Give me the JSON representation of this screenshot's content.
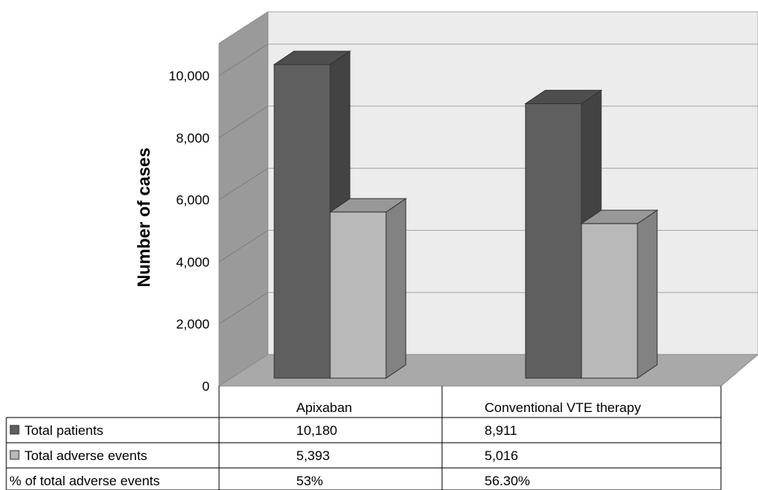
{
  "chart_data": {
    "type": "bar",
    "style": "3d-clustered",
    "ylabel": "Number of cases",
    "ylim": [
      0,
      10000
    ],
    "yticks": [
      "0",
      "2,000",
      "4,000",
      "6,000",
      "8,000",
      "10,000"
    ],
    "ytick_values": [
      0,
      2000,
      4000,
      6000,
      8000,
      10000
    ],
    "categories": [
      "Apixaban",
      "Conventional VTE therapy"
    ],
    "series": [
      {
        "name": "Total patients",
        "values": [
          10180,
          8911
        ],
        "color": "#5f5f5f"
      },
      {
        "name": "Total adverse events",
        "values": [
          5393,
          5016
        ],
        "color": "#b9b9b9"
      }
    ],
    "grid": true,
    "legend": "data-table-left",
    "table": {
      "rows": [
        {
          "label": "Total patients",
          "cells": [
            "10,180",
            "8,911"
          ]
        },
        {
          "label": "Total adverse events",
          "cells": [
            "5,393",
            "5,016"
          ]
        },
        {
          "label": "% of total adverse events",
          "cells": [
            "53%",
            "56.30%"
          ]
        }
      ]
    }
  }
}
